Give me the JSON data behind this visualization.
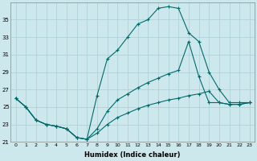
{
  "xlabel": "Humidex (Indice chaleur)",
  "bg_color": "#cce8ec",
  "grid_color": "#aacdd4",
  "line_color": "#006b6b",
  "ylim": [
    21,
    37
  ],
  "xlim": [
    -0.5,
    23.5
  ],
  "yticks": [
    21,
    23,
    25,
    27,
    29,
    31,
    33,
    35
  ],
  "xticks": [
    0,
    1,
    2,
    3,
    4,
    5,
    6,
    7,
    8,
    9,
    10,
    11,
    12,
    13,
    14,
    15,
    16,
    17,
    18,
    19,
    20,
    21,
    22,
    23
  ],
  "line1_y": [
    26.0,
    25.0,
    23.5,
    23.0,
    22.8,
    22.5,
    21.5,
    21.3,
    26.3,
    30.5,
    31.5,
    33.0,
    34.5,
    35.0,
    36.3,
    36.5,
    36.3,
    33.5,
    32.5,
    29.0,
    27.0,
    25.5,
    25.5,
    25.5
  ],
  "line2_y": [
    26.0,
    25.0,
    23.5,
    23.0,
    22.8,
    22.5,
    21.5,
    21.3,
    22.5,
    24.5,
    25.8,
    26.5,
    27.2,
    27.8,
    28.3,
    28.8,
    29.2,
    32.5,
    28.5,
    25.5,
    25.5,
    25.3,
    25.3,
    25.5
  ],
  "line3_y": [
    26.0,
    25.0,
    23.5,
    23.0,
    22.8,
    22.5,
    21.5,
    21.3,
    22.0,
    23.0,
    23.8,
    24.3,
    24.8,
    25.2,
    25.5,
    25.8,
    26.0,
    26.3,
    26.5,
    26.8,
    25.5,
    25.3,
    25.3,
    25.5
  ]
}
